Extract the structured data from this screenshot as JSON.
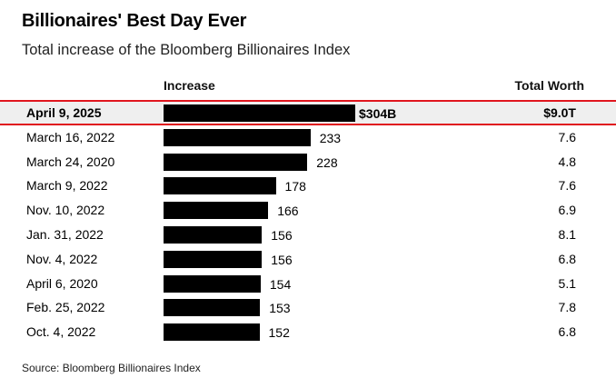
{
  "chart_data": {
    "type": "bar",
    "title": "Billionaires' Best Day Ever",
    "subtitle": "Total increase of the Bloomberg Billionaires Index",
    "columns": {
      "increase": "Increase",
      "total_worth": "Total Worth"
    },
    "categories": [
      "April 9, 2025",
      "March 16, 2022",
      "March 24, 2020",
      "March 9, 2022",
      "Nov. 10, 2022",
      "Jan. 31, 2022",
      "Nov. 4, 2022",
      "April 6, 2020",
      "Feb. 25, 2022",
      "Oct. 4, 2022"
    ],
    "values": [
      304,
      233,
      228,
      178,
      166,
      156,
      156,
      154,
      153,
      152
    ],
    "value_labels": [
      "$304B",
      "233",
      "228",
      "178",
      "166",
      "156",
      "156",
      "154",
      "153",
      "152"
    ],
    "total_worth": [
      "$9.0T",
      "7.6",
      "4.8",
      "7.6",
      "6.9",
      "8.1",
      "6.8",
      "5.1",
      "7.8",
      "6.8"
    ],
    "highlighted_row": 0,
    "units": {
      "increase": "billions USD",
      "total_worth": "trillions USD"
    },
    "source": "Source: Bloomberg Billionaires Index",
    "colors": {
      "bar": "#000000",
      "highlight_outline": "#e0161e",
      "highlight_fill": "#efefef"
    }
  }
}
